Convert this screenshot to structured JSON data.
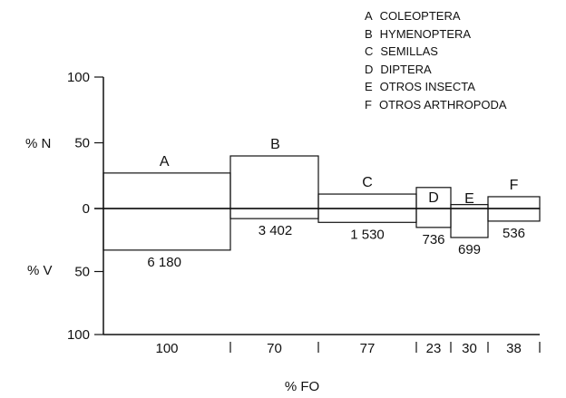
{
  "chart_data": {
    "type": "bar",
    "subtype": "composite-index (Costello) diagram",
    "xlabel": "% FO",
    "ylabel_top": "% N",
    "ylabel_bottom": "% V",
    "yticks_top": [
      "100",
      "50",
      "0"
    ],
    "yticks_bottom": [
      "50",
      "100"
    ],
    "ylim_top": [
      0,
      100
    ],
    "ylim_bottom": [
      0,
      100
    ],
    "categories": [
      {
        "key": "A",
        "name": "COLEOPTERA",
        "fo_label": "100",
        "pct_n": 27,
        "pct_v": 33,
        "v_label": "6 180"
      },
      {
        "key": "B",
        "name": "HYMENOPTERA",
        "fo_label": "70",
        "pct_n": 40,
        "pct_v": 8,
        "v_label": "3 402"
      },
      {
        "key": "C",
        "name": "SEMILLAS",
        "fo_label": "77",
        "pct_n": 11,
        "pct_v": 11,
        "v_label": "1 530"
      },
      {
        "key": "D",
        "name": "DIPTERA",
        "fo_label": "23",
        "pct_n": 16,
        "pct_v": 15,
        "v_label": "736"
      },
      {
        "key": "E",
        "name": "OTROS INSECTA",
        "fo_label": "30",
        "pct_n": 3,
        "pct_v": 23,
        "v_label": "699"
      },
      {
        "key": "F",
        "name": "OTROS ARTHROPODA",
        "fo_label": "38",
        "pct_n": 9,
        "pct_v": 10,
        "v_label": "536"
      }
    ],
    "legend_position": "top-right",
    "grid": false
  }
}
